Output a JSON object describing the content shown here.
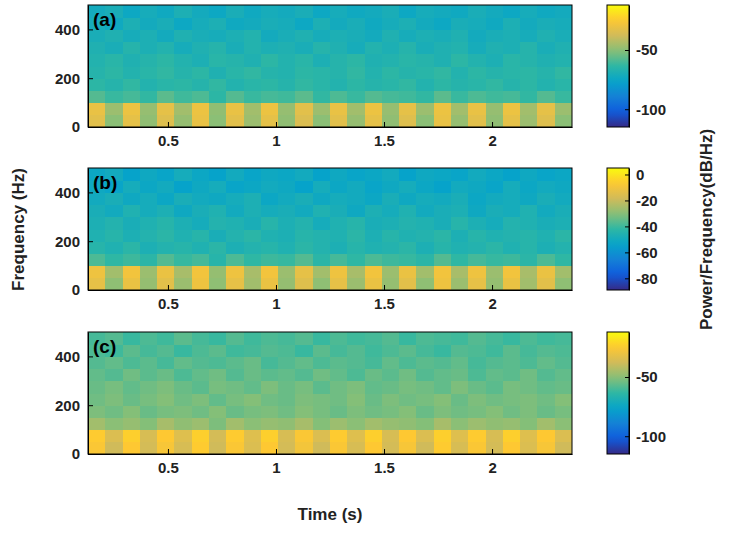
{
  "chart_data": [
    {
      "type": "heatmap",
      "label": "(a)",
      "xlim": [
        0.13,
        2.37
      ],
      "xticks": [
        0.5,
        1,
        1.5,
        2
      ],
      "ylim": [
        0,
        500
      ],
      "yticks": [
        0,
        200,
        400
      ],
      "clim": [
        -115,
        -12
      ],
      "cticks": [
        -100,
        -50
      ],
      "x": [
        0.17,
        0.25,
        0.33,
        0.41,
        0.49,
        0.57,
        0.65,
        0.73,
        0.81,
        0.89,
        0.97,
        1.05,
        1.13,
        1.21,
        1.29,
        1.37,
        1.45,
        1.53,
        1.61,
        1.69,
        1.77,
        1.85,
        1.93,
        2.01,
        2.09,
        2.17,
        2.25,
        2.33
      ],
      "y": [
        25,
        75,
        125,
        175,
        225,
        275,
        325,
        375,
        425,
        475
      ],
      "z": [
        [
          -33,
          -50,
          -32,
          -49,
          -34,
          -48,
          -31,
          -50,
          -33,
          -47,
          -32,
          -49,
          -35,
          -50,
          -33,
          -48,
          -32,
          -49,
          -34,
          -50,
          -31,
          -48,
          -33,
          -49,
          -32,
          -47,
          -34,
          -50
        ],
        [
          -31,
          -47,
          -30,
          -48,
          -32,
          -46,
          -30,
          -49,
          -31,
          -46,
          -30,
          -48,
          -33,
          -47,
          -31,
          -46,
          -30,
          -48,
          -32,
          -47,
          -30,
          -46,
          -31,
          -48,
          -30,
          -46,
          -32,
          -47
        ],
        [
          -58,
          -62,
          -60,
          -63,
          -57,
          -61,
          -59,
          -64,
          -58,
          -62,
          -60,
          -61,
          -57,
          -63,
          -59,
          -62,
          -58,
          -60,
          -61,
          -63,
          -57,
          -62,
          -59,
          -61,
          -60,
          -63,
          -58,
          -62
        ],
        [
          -64,
          -66,
          -63,
          -67,
          -65,
          -64,
          -66,
          -63,
          -67,
          -65,
          -64,
          -66,
          -63,
          -65,
          -67,
          -64,
          -66,
          -65,
          -63,
          -67,
          -64,
          -66,
          -65,
          -63,
          -66,
          -64,
          -67,
          -65
        ],
        [
          -66,
          -64,
          -67,
          -65,
          -63,
          -66,
          -64,
          -68,
          -65,
          -63,
          -66,
          -67,
          -64,
          -65,
          -66,
          -63,
          -67,
          -64,
          -66,
          -65,
          -63,
          -67,
          -64,
          -66,
          -65,
          -64,
          -66,
          -63
        ],
        [
          -67,
          -65,
          -68,
          -66,
          -64,
          -67,
          -69,
          -65,
          -66,
          -68,
          -64,
          -67,
          -65,
          -69,
          -66,
          -64,
          -68,
          -67,
          -65,
          -66,
          -68,
          -64,
          -67,
          -69,
          -65,
          -66,
          -68,
          -67
        ],
        [
          -68,
          -70,
          -66,
          -69,
          -67,
          -71,
          -68,
          -66,
          -70,
          -67,
          -69,
          -68,
          -70,
          -66,
          -68,
          -71,
          -67,
          -69,
          -66,
          -70,
          -68,
          -67,
          -71,
          -68,
          -69,
          -66,
          -70,
          -68
        ],
        [
          -70,
          -68,
          -71,
          -69,
          -72,
          -68,
          -70,
          -71,
          -69,
          -67,
          -72,
          -70,
          -68,
          -71,
          -69,
          -70,
          -72,
          -68,
          -71,
          -69,
          -70,
          -68,
          -72,
          -70,
          -69,
          -71,
          -68,
          -70
        ],
        [
          -71,
          -73,
          -69,
          -72,
          -70,
          -74,
          -71,
          -69,
          -73,
          -72,
          -70,
          -71,
          -74,
          -69,
          -72,
          -70,
          -73,
          -71,
          -69,
          -72,
          -74,
          -70,
          -71,
          -73,
          -69,
          -72,
          -70,
          -71
        ],
        [
          -72,
          -70,
          -74,
          -71,
          -73,
          -69,
          -72,
          -74,
          -70,
          -73,
          -71,
          -72,
          -70,
          -74,
          -71,
          -73,
          -72,
          -70,
          -74,
          -71,
          -72,
          -73,
          -70,
          -72,
          -74,
          -71,
          -73,
          -72
        ]
      ]
    },
    {
      "type": "heatmap",
      "label": "(b)",
      "ylabel": "Frequency (Hz)",
      "colorbar_label": "Power/Frequency(dB/Hz)",
      "xlim": [
        0.13,
        2.37
      ],
      "xticks": [
        0.5,
        1,
        1.5,
        2
      ],
      "ylim": [
        0,
        500
      ],
      "yticks": [
        0,
        200,
        400
      ],
      "clim": [
        -89,
        5
      ],
      "cticks": [
        -80,
        -60,
        -40,
        -20,
        0
      ],
      "x": [
        0.17,
        0.25,
        0.33,
        0.41,
        0.49,
        0.57,
        0.65,
        0.73,
        0.81,
        0.89,
        0.97,
        1.05,
        1.13,
        1.21,
        1.29,
        1.37,
        1.45,
        1.53,
        1.61,
        1.69,
        1.77,
        1.85,
        1.93,
        2.01,
        2.09,
        2.17,
        2.25,
        2.33
      ],
      "y": [
        25,
        75,
        125,
        175,
        225,
        275,
        325,
        375,
        425,
        475
      ],
      "z": [
        [
          -13,
          -29,
          -12,
          -28,
          -14,
          -27,
          -11,
          -29,
          -13,
          -26,
          -12,
          -28,
          -15,
          -29,
          -13,
          -27,
          -12,
          -28,
          -14,
          -29,
          -11,
          -27,
          -13,
          -28,
          -12,
          -26,
          -14,
          -29
        ],
        [
          -11,
          -26,
          -10,
          -27,
          -12,
          -25,
          -10,
          -28,
          -11,
          -25,
          -10,
          -27,
          -13,
          -26,
          -11,
          -25,
          -10,
          -27,
          -12,
          -26,
          -10,
          -25,
          -11,
          -27,
          -10,
          -25,
          -12,
          -26
        ],
        [
          -38,
          -42,
          -40,
          -43,
          -37,
          -41,
          -39,
          -44,
          -38,
          -42,
          -40,
          -41,
          -37,
          -43,
          -39,
          -42,
          -38,
          -40,
          -41,
          -43,
          -37,
          -42,
          -39,
          -41,
          -40,
          -43,
          -38,
          -42
        ],
        [
          -44,
          -46,
          -43,
          -47,
          -45,
          -44,
          -46,
          -43,
          -47,
          -45,
          -44,
          -46,
          -43,
          -45,
          -47,
          -44,
          -46,
          -45,
          -43,
          -47,
          -44,
          -46,
          -45,
          -43,
          -46,
          -44,
          -47,
          -45
        ],
        [
          -46,
          -44,
          -47,
          -45,
          -43,
          -46,
          -44,
          -48,
          -45,
          -43,
          -46,
          -47,
          -44,
          -45,
          -46,
          -43,
          -47,
          -44,
          -46,
          -45,
          -43,
          -47,
          -44,
          -46,
          -45,
          -44,
          -46,
          -43
        ],
        [
          -47,
          -45,
          -48,
          -46,
          -44,
          -47,
          -49,
          -45,
          -46,
          -48,
          -44,
          -47,
          -45,
          -49,
          -46,
          -44,
          -48,
          -47,
          -45,
          -46,
          -48,
          -44,
          -47,
          -49,
          -45,
          -46,
          -48,
          -47
        ],
        [
          -48,
          -50,
          -46,
          -49,
          -47,
          -51,
          -48,
          -46,
          -50,
          -47,
          -49,
          -48,
          -50,
          -46,
          -48,
          -51,
          -47,
          -49,
          -46,
          -50,
          -48,
          -47,
          -51,
          -48,
          -49,
          -46,
          -50,
          -48
        ],
        [
          -50,
          -48,
          -51,
          -49,
          -52,
          -48,
          -50,
          -51,
          -49,
          -47,
          -52,
          -50,
          -48,
          -51,
          -49,
          -50,
          -52,
          -48,
          -51,
          -49,
          -50,
          -48,
          -52,
          -50,
          -49,
          -51,
          -48,
          -50
        ],
        [
          -51,
          -53,
          -49,
          -52,
          -50,
          -54,
          -51,
          -49,
          -53,
          -52,
          -50,
          -51,
          -54,
          -49,
          -52,
          -50,
          -53,
          -51,
          -49,
          -52,
          -54,
          -50,
          -51,
          -53,
          -49,
          -52,
          -50,
          -51
        ],
        [
          -52,
          -50,
          -54,
          -51,
          -53,
          -49,
          -52,
          -54,
          -50,
          -53,
          -51,
          -52,
          -50,
          -54,
          -51,
          -53,
          -52,
          -50,
          -54,
          -51,
          -52,
          -53,
          -50,
          -52,
          -54,
          -51,
          -53,
          -52
        ]
      ]
    },
    {
      "type": "heatmap",
      "label": "(c)",
      "xlabel": "Time (s)",
      "xlim": [
        0.13,
        2.37
      ],
      "xticks": [
        0.5,
        1,
        1.5,
        2
      ],
      "ylim": [
        0,
        500
      ],
      "yticks": [
        0,
        200,
        400
      ],
      "clim": [
        -115,
        -12
      ],
      "cticks": [
        -100,
        -50
      ],
      "x": [
        0.17,
        0.25,
        0.33,
        0.41,
        0.49,
        0.57,
        0.65,
        0.73,
        0.81,
        0.89,
        0.97,
        1.05,
        1.13,
        1.21,
        1.29,
        1.37,
        1.45,
        1.53,
        1.61,
        1.69,
        1.77,
        1.85,
        1.93,
        2.01,
        2.09,
        2.17,
        2.25,
        2.33
      ],
      "y": [
        25,
        75,
        125,
        175,
        225,
        275,
        325,
        375,
        425,
        475
      ],
      "z": [
        [
          -26,
          -38,
          -25,
          -37,
          -27,
          -36,
          -24,
          -38,
          -26,
          -35,
          -25,
          -37,
          -28,
          -38,
          -26,
          -36,
          -25,
          -37,
          -27,
          -38,
          -24,
          -36,
          -26,
          -37,
          -25,
          -35,
          -27,
          -38
        ],
        [
          -24,
          -35,
          -23,
          -36,
          -25,
          -34,
          -23,
          -37,
          -24,
          -34,
          -23,
          -36,
          -26,
          -35,
          -24,
          -34,
          -23,
          -36,
          -25,
          -35,
          -23,
          -34,
          -24,
          -36,
          -23,
          -34,
          -25,
          -35
        ],
        [
          -46,
          -50,
          -48,
          -51,
          -45,
          -49,
          -47,
          -52,
          -46,
          -50,
          -48,
          -49,
          -45,
          -51,
          -47,
          -50,
          -46,
          -48,
          -49,
          -51,
          -45,
          -50,
          -47,
          -49,
          -48,
          -51,
          -46,
          -50
        ],
        [
          -52,
          -54,
          -51,
          -55,
          -53,
          -52,
          -54,
          -51,
          -55,
          -53,
          -52,
          -54,
          -51,
          -53,
          -55,
          -52,
          -54,
          -53,
          -51,
          -55,
          -52,
          -54,
          -53,
          -51,
          -54,
          -52,
          -55,
          -53
        ],
        [
          -54,
          -52,
          -55,
          -53,
          -51,
          -54,
          -52,
          -56,
          -53,
          -51,
          -54,
          -55,
          -52,
          -53,
          -54,
          -51,
          -55,
          -52,
          -54,
          -53,
          -51,
          -55,
          -52,
          -54,
          -53,
          -52,
          -54,
          -51
        ],
        [
          -55,
          -53,
          -56,
          -54,
          -52,
          -55,
          -57,
          -53,
          -54,
          -56,
          -52,
          -55,
          -53,
          -57,
          -54,
          -52,
          -56,
          -55,
          -53,
          -54,
          -56,
          -52,
          -55,
          -57,
          -53,
          -54,
          -56,
          -55
        ],
        [
          -56,
          -58,
          -54,
          -57,
          -55,
          -59,
          -56,
          -54,
          -58,
          -55,
          -57,
          -56,
          -58,
          -54,
          -56,
          -59,
          -55,
          -57,
          -54,
          -58,
          -56,
          -55,
          -59,
          -56,
          -57,
          -54,
          -58,
          -56
        ],
        [
          -58,
          -56,
          -59,
          -57,
          -60,
          -56,
          -58,
          -59,
          -57,
          -55,
          -60,
          -58,
          -56,
          -59,
          -57,
          -58,
          -60,
          -56,
          -59,
          -57,
          -58,
          -56,
          -60,
          -58,
          -57,
          -59,
          -56,
          -58
        ],
        [
          -59,
          -61,
          -57,
          -60,
          -58,
          -62,
          -59,
          -57,
          -61,
          -60,
          -58,
          -59,
          -62,
          -57,
          -60,
          -58,
          -61,
          -59,
          -57,
          -60,
          -62,
          -58,
          -59,
          -61,
          -57,
          -60,
          -58,
          -59
        ],
        [
          -60,
          -58,
          -62,
          -59,
          -61,
          -57,
          -60,
          -62,
          -58,
          -61,
          -59,
          -60,
          -58,
          -62,
          -59,
          -61,
          -60,
          -58,
          -62,
          -59,
          -60,
          -61,
          -58,
          -60,
          -62,
          -59,
          -61,
          -60
        ]
      ]
    }
  ]
}
